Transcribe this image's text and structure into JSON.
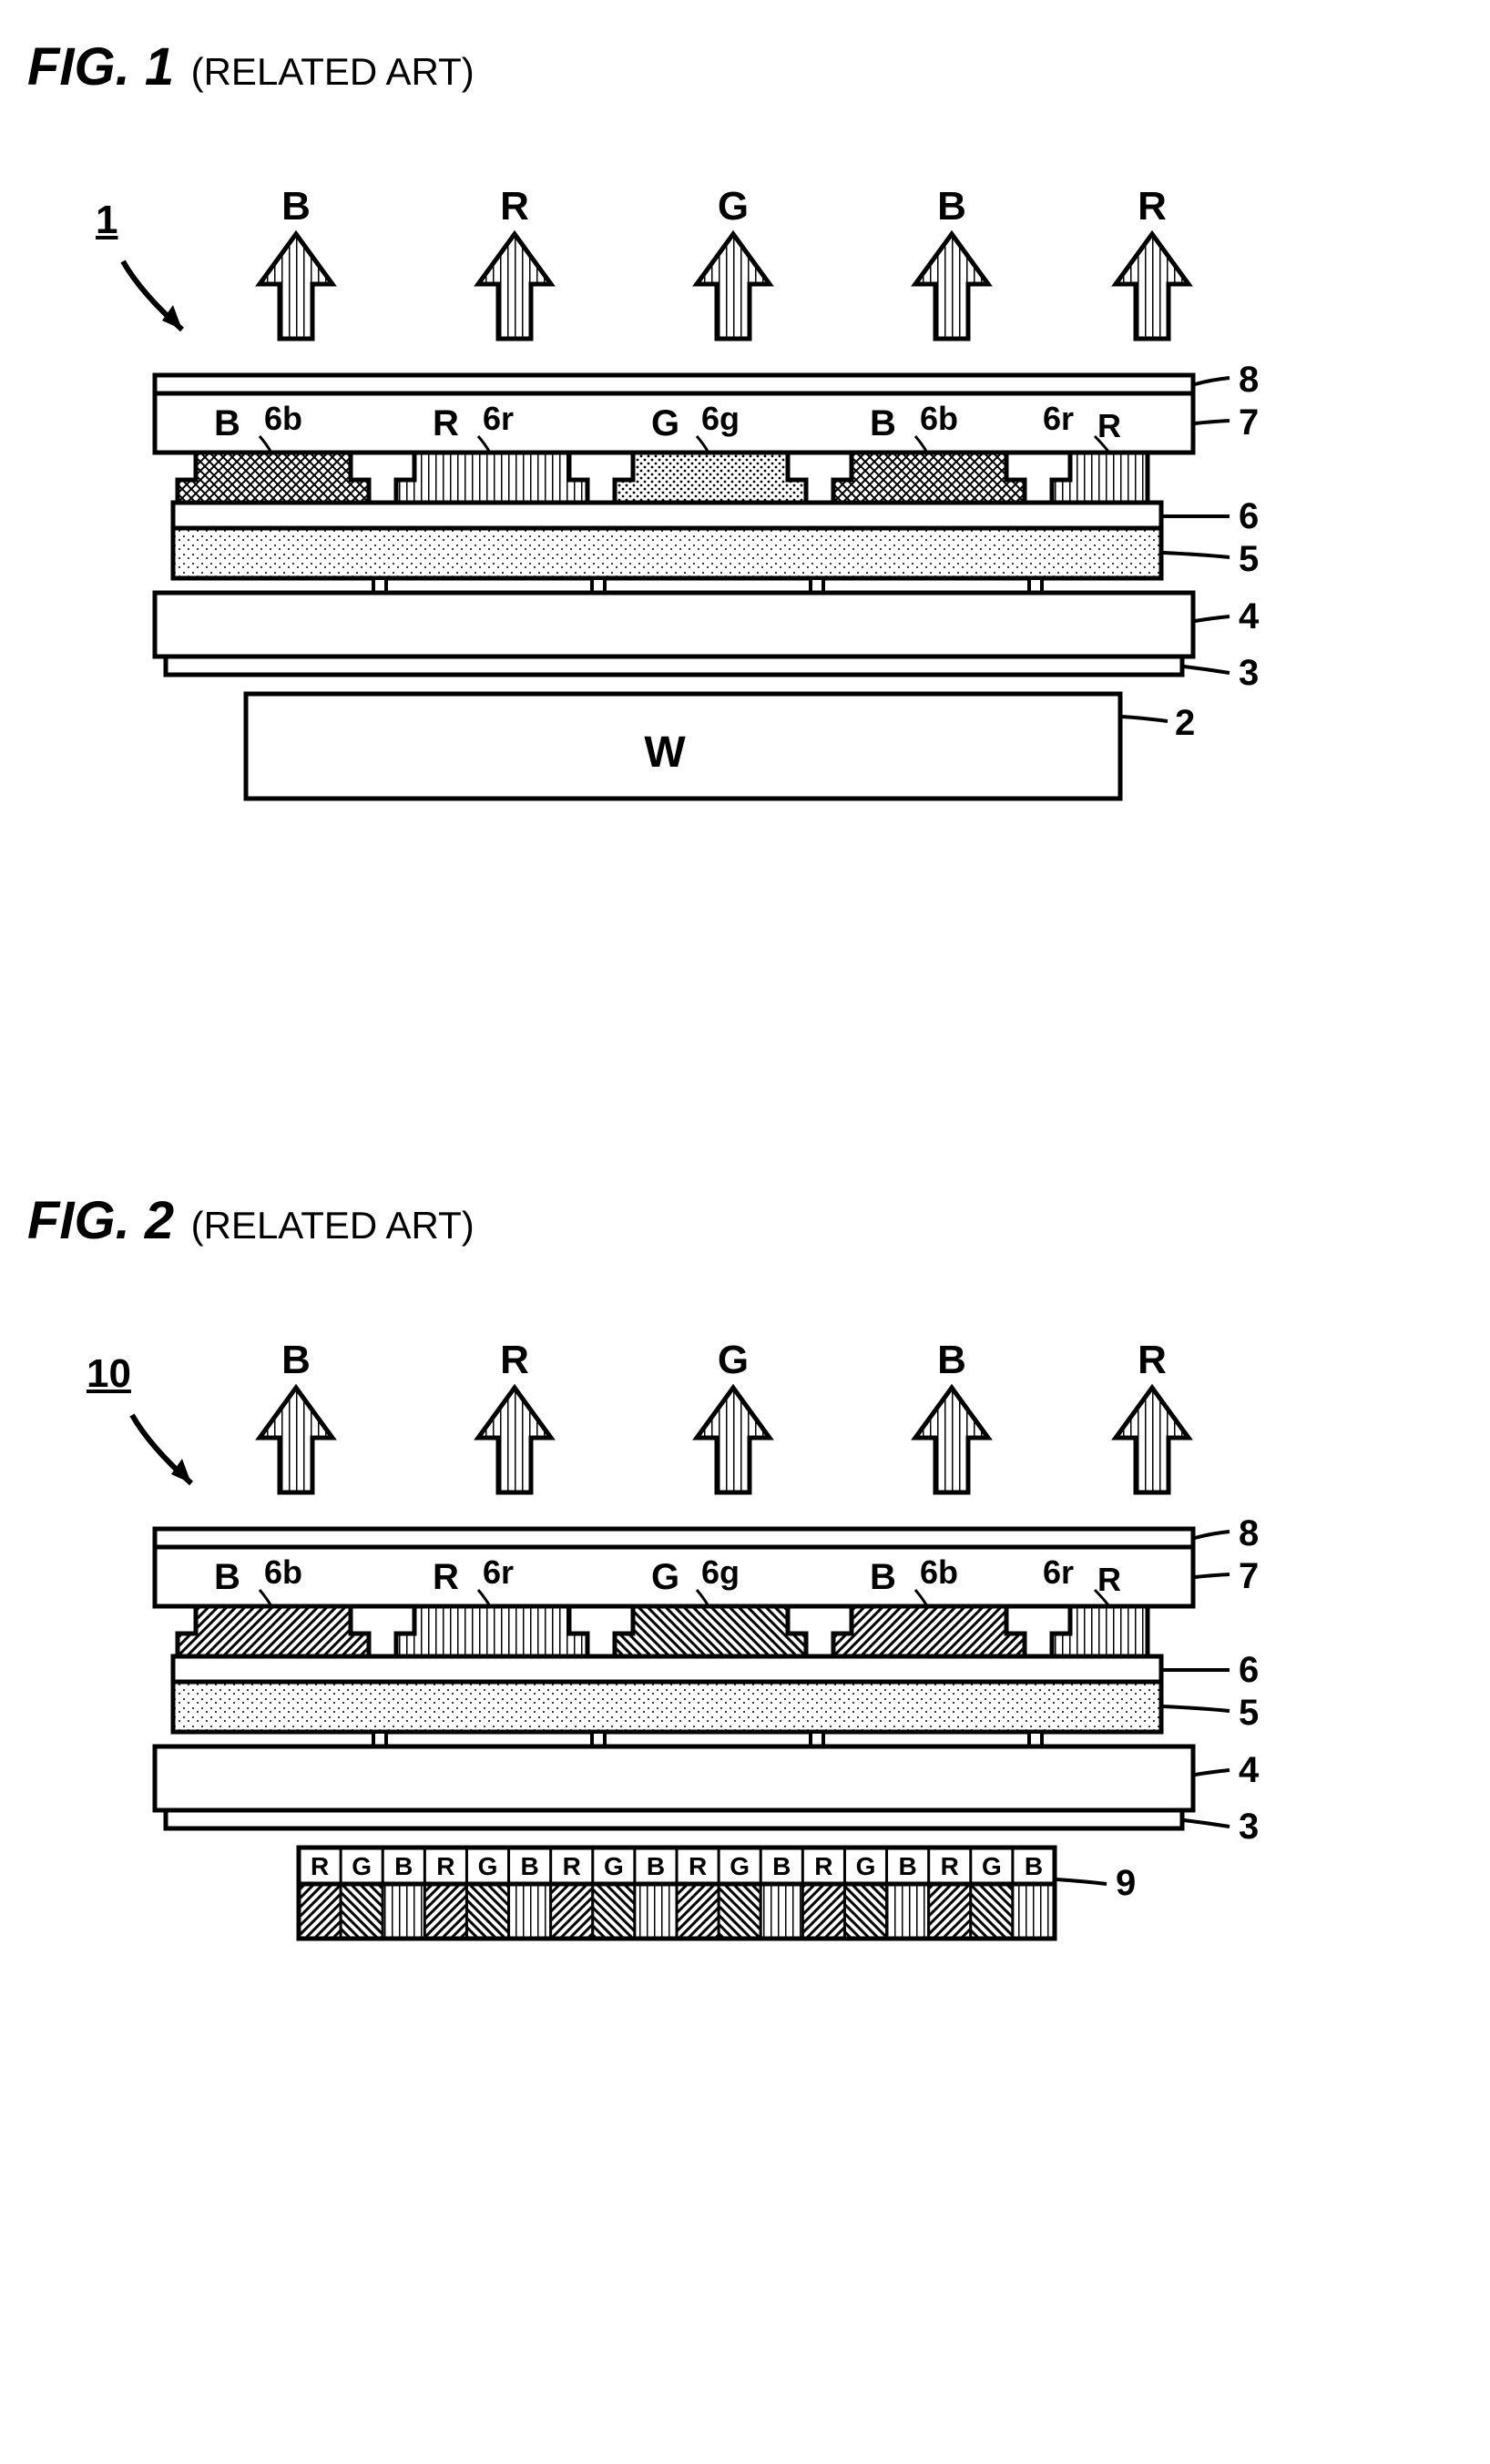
{
  "fig1": {
    "title": "FIG. 1",
    "subtitle": "(RELATED ART)",
    "ref": "1",
    "arrows": [
      "B",
      "R",
      "G",
      "B",
      "R"
    ],
    "filters": [
      {
        "label": "B",
        "sub": "6b"
      },
      {
        "label": "R",
        "sub": "6r"
      },
      {
        "label": "G",
        "sub": "6g"
      },
      {
        "label": "B",
        "sub": "6b"
      },
      {
        "label": "R",
        "sub": "6r",
        "half": true
      }
    ],
    "right_labels": [
      "8",
      "7",
      "6",
      "5",
      "4",
      "3",
      "2"
    ],
    "backlight_label": "W",
    "backlight_type": "plain"
  },
  "fig2": {
    "title": "FIG. 2",
    "subtitle": "(RELATED ART)",
    "ref": "10",
    "arrows": [
      "B",
      "R",
      "G",
      "B",
      "R"
    ],
    "filters": [
      {
        "label": "B",
        "sub": "6b"
      },
      {
        "label": "R",
        "sub": "6r"
      },
      {
        "label": "G",
        "sub": "6g"
      },
      {
        "label": "B",
        "sub": "6b"
      },
      {
        "label": "R",
        "sub": "6r",
        "half": true
      }
    ],
    "right_labels": [
      "8",
      "7",
      "6",
      "5",
      "4",
      "3",
      "9"
    ],
    "backlight_type": "rgb",
    "rgb_sequence": [
      "R",
      "G",
      "B",
      "R",
      "G",
      "B",
      "R",
      "G",
      "B",
      "R",
      "G",
      "B",
      "R",
      "G",
      "B",
      "R",
      "G",
      "B"
    ]
  },
  "colors": {
    "stroke": "#000000",
    "bg": "#ffffff"
  },
  "hatch": {
    "B_fig1": "crosshatch",
    "R_fig1": "vstripe",
    "G_fig1": "dotfill",
    "B_fig2": "diag",
    "R_fig2": "vstripe",
    "G_fig2": "diag2"
  }
}
